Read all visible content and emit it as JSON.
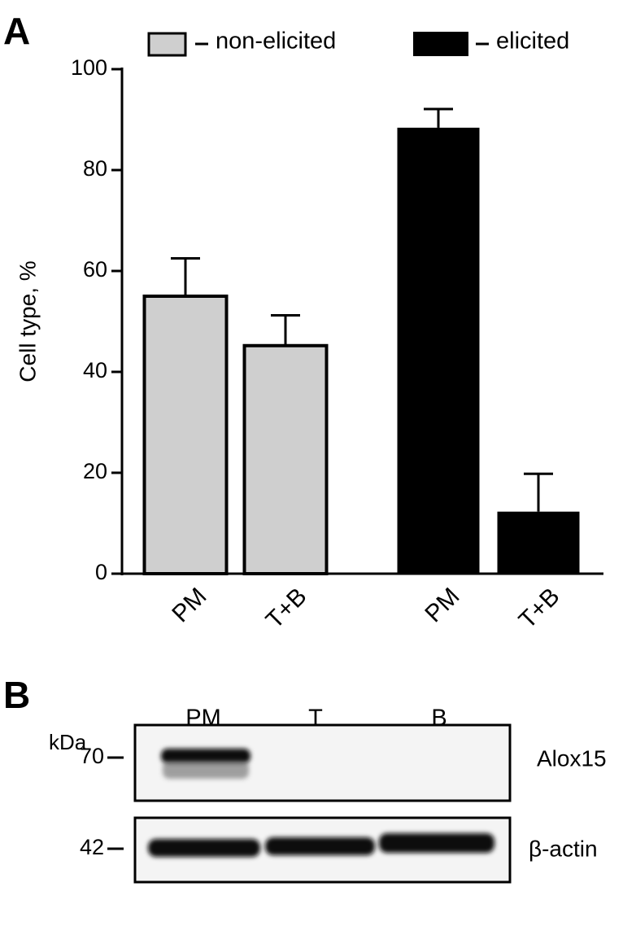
{
  "chart_data": {
    "type": "bar",
    "panel": "A",
    "ylabel": "Cell type, %",
    "categories": [
      "PM",
      "T+B"
    ],
    "series": [
      {
        "name": "non-elicited",
        "color": "#cfcfcf",
        "values": [
          55.0,
          45.2
        ],
        "errors": [
          7.5,
          6.0
        ]
      },
      {
        "name": "elicited",
        "color": "#000000",
        "values": [
          88.4,
          12.3
        ],
        "errors": [
          3.7,
          7.5
        ]
      }
    ],
    "ylim": [
      0,
      100
    ],
    "yticks": [
      0,
      20,
      40,
      60,
      80,
      100
    ],
    "legend": "top"
  },
  "blot": {
    "panel": "B",
    "unit": "kDa",
    "lanes": [
      "PM",
      "T",
      "B"
    ],
    "rows": [
      {
        "marker": "70",
        "label": "Alox15"
      },
      {
        "marker": "42",
        "label": "β-actin"
      }
    ]
  }
}
